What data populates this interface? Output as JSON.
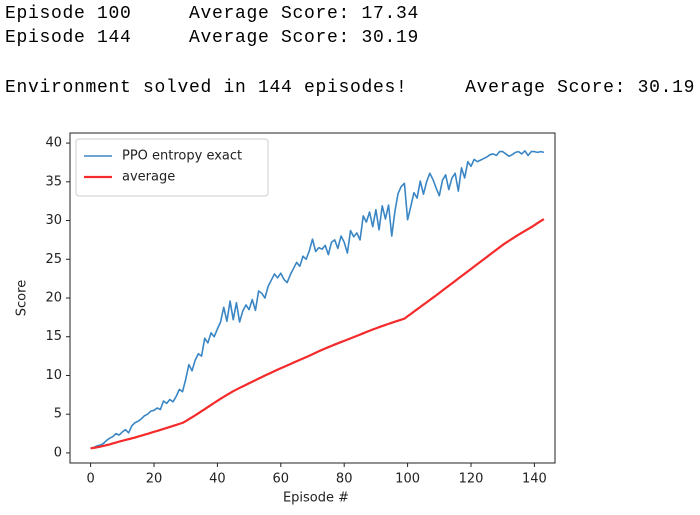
{
  "output_lines": [
    "Episode 100     Average Score: 17.34",
    "Episode 144     Average Score: 30.19",
    "Environment solved in 144 episodes!     Average Score: 30.19"
  ],
  "chart_data": {
    "type": "line",
    "x_label": "Episode #",
    "y_label": "Score",
    "x": [
      0,
      1,
      2,
      3,
      4,
      5,
      6,
      7,
      8,
      9,
      10,
      11,
      12,
      13,
      14,
      15,
      16,
      17,
      18,
      19,
      20,
      21,
      22,
      23,
      24,
      25,
      26,
      27,
      28,
      29,
      30,
      31,
      32,
      33,
      34,
      35,
      36,
      37,
      38,
      39,
      40,
      41,
      42,
      43,
      44,
      45,
      46,
      47,
      48,
      49,
      50,
      51,
      52,
      53,
      54,
      55,
      56,
      57,
      58,
      59,
      60,
      61,
      62,
      63,
      64,
      65,
      66,
      67,
      68,
      69,
      70,
      71,
      72,
      73,
      74,
      75,
      76,
      77,
      78,
      79,
      80,
      81,
      82,
      83,
      84,
      85,
      86,
      87,
      88,
      89,
      90,
      91,
      92,
      93,
      94,
      95,
      96,
      97,
      98,
      99,
      100,
      101,
      102,
      103,
      104,
      105,
      106,
      107,
      108,
      109,
      110,
      111,
      112,
      113,
      114,
      115,
      116,
      117,
      118,
      119,
      120,
      121,
      122,
      123,
      124,
      125,
      126,
      127,
      128,
      129,
      130,
      131,
      132,
      133,
      134,
      135,
      136,
      137,
      138,
      139,
      140,
      141,
      142,
      143
    ],
    "series": [
      {
        "name": "PPO entropy exact",
        "color": "#3a86c4",
        "width": 1.6,
        "values": [
          0.6,
          0.7,
          0.9,
          1.0,
          1.2,
          1.6,
          1.9,
          2.1,
          2.5,
          2.3,
          2.7,
          3.0,
          2.6,
          3.5,
          3.9,
          4.1,
          4.4,
          4.8,
          5.0,
          5.4,
          5.5,
          5.8,
          5.6,
          6.7,
          6.4,
          6.9,
          6.6,
          7.3,
          8.2,
          7.9,
          9.5,
          11.4,
          10.6,
          12.0,
          12.8,
          12.5,
          14.8,
          14.2,
          15.5,
          15.0,
          16.0,
          16.9,
          18.8,
          17.0,
          19.6,
          17.2,
          19.4,
          16.9,
          18.3,
          19.1,
          18.5,
          19.8,
          18.4,
          20.9,
          20.6,
          20.0,
          21.5,
          22.3,
          23.1,
          22.6,
          23.2,
          22.4,
          22.0,
          23.0,
          23.8,
          24.6,
          24.1,
          25.4,
          25.0,
          26.1,
          27.6,
          26.0,
          26.5,
          26.3,
          26.8,
          25.6,
          27.2,
          27.5,
          26.4,
          28.0,
          27.2,
          25.8,
          28.7,
          27.9,
          28.4,
          27.5,
          30.6,
          29.8,
          31.1,
          29.2,
          31.4,
          28.8,
          31.9,
          30.2,
          32.0,
          28.0,
          31.2,
          33.5,
          34.4,
          34.8,
          30.1,
          31.8,
          33.6,
          32.9,
          35.1,
          33.4,
          35.0,
          36.1,
          35.3,
          34.2,
          33.2,
          35.2,
          35.9,
          34.0,
          35.5,
          36.1,
          33.8,
          36.8,
          35.5,
          37.6,
          37.0,
          37.9,
          37.6,
          37.8,
          38.0,
          38.2,
          38.5,
          38.6,
          38.4,
          38.9,
          38.9,
          38.6,
          38.3,
          38.5,
          38.8,
          38.9,
          38.6,
          39.0,
          38.4,
          38.9,
          38.9,
          38.8,
          38.9,
          38.8
        ]
      },
      {
        "name": "average",
        "color": "#f52a2a",
        "width": 2.2,
        "values": [
          0.6,
          0.65,
          0.72,
          0.8,
          0.9,
          1.0,
          1.1,
          1.22,
          1.34,
          1.46,
          1.57,
          1.68,
          1.78,
          1.88,
          1.99,
          2.11,
          2.23,
          2.35,
          2.47,
          2.6,
          2.72,
          2.84,
          2.97,
          3.1,
          3.23,
          3.36,
          3.49,
          3.62,
          3.75,
          3.88,
          4.1,
          4.35,
          4.6,
          4.86,
          5.12,
          5.39,
          5.65,
          5.92,
          6.19,
          6.46,
          6.73,
          6.99,
          7.24,
          7.49,
          7.73,
          7.97,
          8.18,
          8.39,
          8.59,
          8.79,
          8.99,
          9.19,
          9.39,
          9.59,
          9.79,
          9.99,
          10.18,
          10.37,
          10.56,
          10.75,
          10.93,
          11.11,
          11.29,
          11.47,
          11.65,
          11.83,
          12.01,
          12.19,
          12.37,
          12.55,
          12.74,
          12.93,
          13.12,
          13.3,
          13.48,
          13.65,
          13.82,
          13.99,
          14.15,
          14.31,
          14.47,
          14.63,
          14.79,
          14.95,
          15.11,
          15.27,
          15.44,
          15.61,
          15.77,
          15.93,
          16.08,
          16.23,
          16.38,
          16.52,
          16.66,
          16.8,
          16.94,
          17.07,
          17.2,
          17.34,
          17.64,
          17.94,
          18.24,
          18.54,
          18.84,
          19.14,
          19.44,
          19.74,
          20.04,
          20.34,
          20.65,
          20.96,
          21.27,
          21.58,
          21.89,
          22.2,
          22.51,
          22.82,
          23.13,
          23.44,
          23.75,
          24.06,
          24.37,
          24.68,
          24.99,
          25.3,
          25.61,
          25.92,
          26.23,
          26.54,
          26.85,
          27.12,
          27.39,
          27.66,
          27.92,
          28.17,
          28.42,
          28.66,
          28.9,
          29.13,
          29.4,
          29.67,
          29.93,
          30.19
        ]
      }
    ],
    "xlim": [
      -6.5,
      146.5
    ],
    "xticks": [
      0,
      20,
      40,
      60,
      80,
      100,
      120,
      140
    ],
    "ylim": [
      -1.3,
      41.3
    ],
    "yticks": [
      0,
      5,
      10,
      15,
      20,
      25,
      30,
      35,
      40
    ],
    "grid": false,
    "legend": "upper left"
  }
}
